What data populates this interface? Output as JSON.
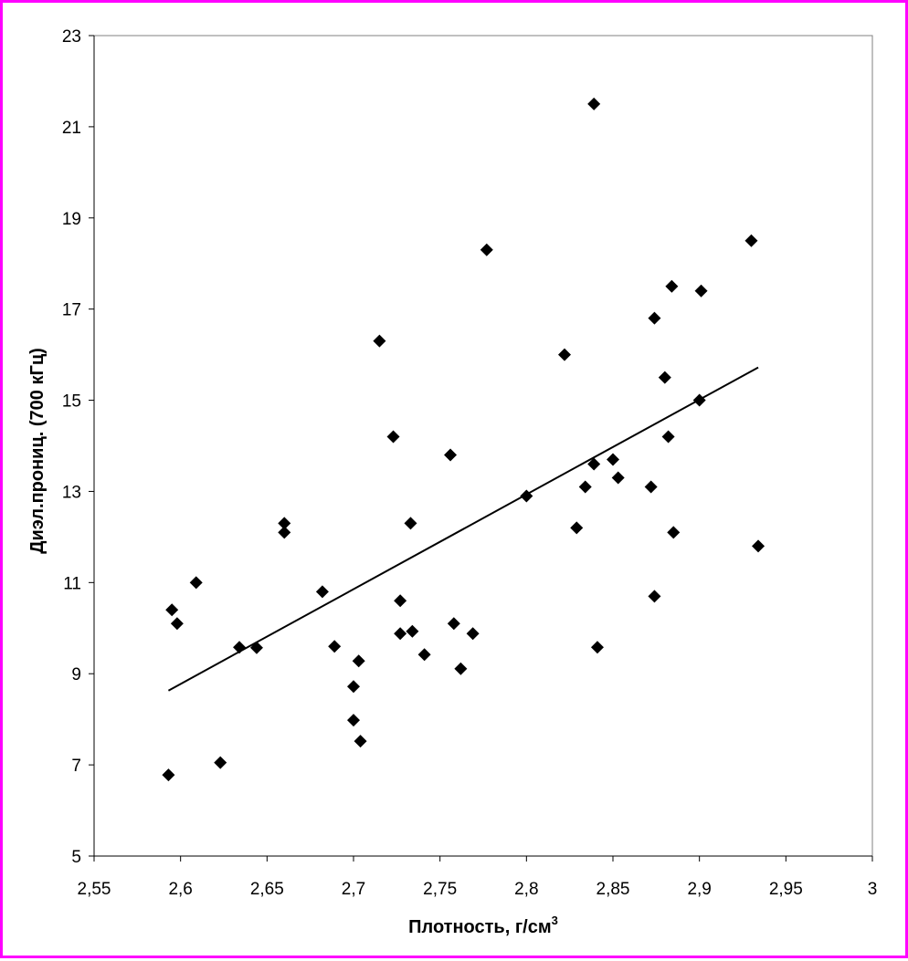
{
  "chart_data": {
    "type": "scatter",
    "xlabel": "Плотность, г/см",
    "xlabel_sup": "3",
    "ylabel": "Диэл.прониц. (700 кГц)",
    "xlim": [
      2.55,
      3.0
    ],
    "ylim": [
      5,
      23
    ],
    "x_ticks": [
      "2,55",
      "2,6",
      "2,65",
      "2,7",
      "2,75",
      "2,8",
      "2,85",
      "2,9",
      "2,95",
      "3"
    ],
    "y_ticks": [
      "5",
      "7",
      "9",
      "11",
      "13",
      "15",
      "17",
      "19",
      "21",
      "23"
    ],
    "grid": false,
    "legend": "none",
    "marker": "diamond",
    "colors": {
      "frame": "#ff00ff",
      "points": "#000000",
      "trend": "#000000"
    },
    "points": [
      [
        2.593,
        6.78
      ],
      [
        2.595,
        10.4
      ],
      [
        2.598,
        10.1
      ],
      [
        2.609,
        11.0
      ],
      [
        2.623,
        7.05
      ],
      [
        2.634,
        9.58
      ],
      [
        2.644,
        9.57
      ],
      [
        2.66,
        12.3
      ],
      [
        2.66,
        12.1
      ],
      [
        2.682,
        10.8
      ],
      [
        2.689,
        9.6
      ],
      [
        2.7,
        8.72
      ],
      [
        2.7,
        7.98
      ],
      [
        2.703,
        9.28
      ],
      [
        2.704,
        7.52
      ],
      [
        2.715,
        16.3
      ],
      [
        2.723,
        14.2
      ],
      [
        2.727,
        10.6
      ],
      [
        2.727,
        9.88
      ],
      [
        2.733,
        12.3
      ],
      [
        2.734,
        9.93
      ],
      [
        2.741,
        9.42
      ],
      [
        2.756,
        13.8
      ],
      [
        2.758,
        10.1
      ],
      [
        2.762,
        9.11
      ],
      [
        2.769,
        9.88
      ],
      [
        2.777,
        18.3
      ],
      [
        2.8,
        12.9
      ],
      [
        2.822,
        16.0
      ],
      [
        2.829,
        12.2
      ],
      [
        2.834,
        13.1
      ],
      [
        2.839,
        21.5
      ],
      [
        2.839,
        13.6
      ],
      [
        2.841,
        9.58
      ],
      [
        2.85,
        13.7
      ],
      [
        2.853,
        13.3
      ],
      [
        2.872,
        13.1
      ],
      [
        2.874,
        16.8
      ],
      [
        2.874,
        10.7
      ],
      [
        2.88,
        15.5
      ],
      [
        2.882,
        14.2
      ],
      [
        2.884,
        17.5
      ],
      [
        2.885,
        12.1
      ],
      [
        2.9,
        15.0
      ],
      [
        2.901,
        17.4
      ],
      [
        2.93,
        18.5
      ],
      [
        2.934,
        11.8
      ]
    ],
    "trendline": {
      "x": [
        2.593,
        2.934
      ],
      "y": [
        8.63,
        15.72
      ]
    }
  }
}
